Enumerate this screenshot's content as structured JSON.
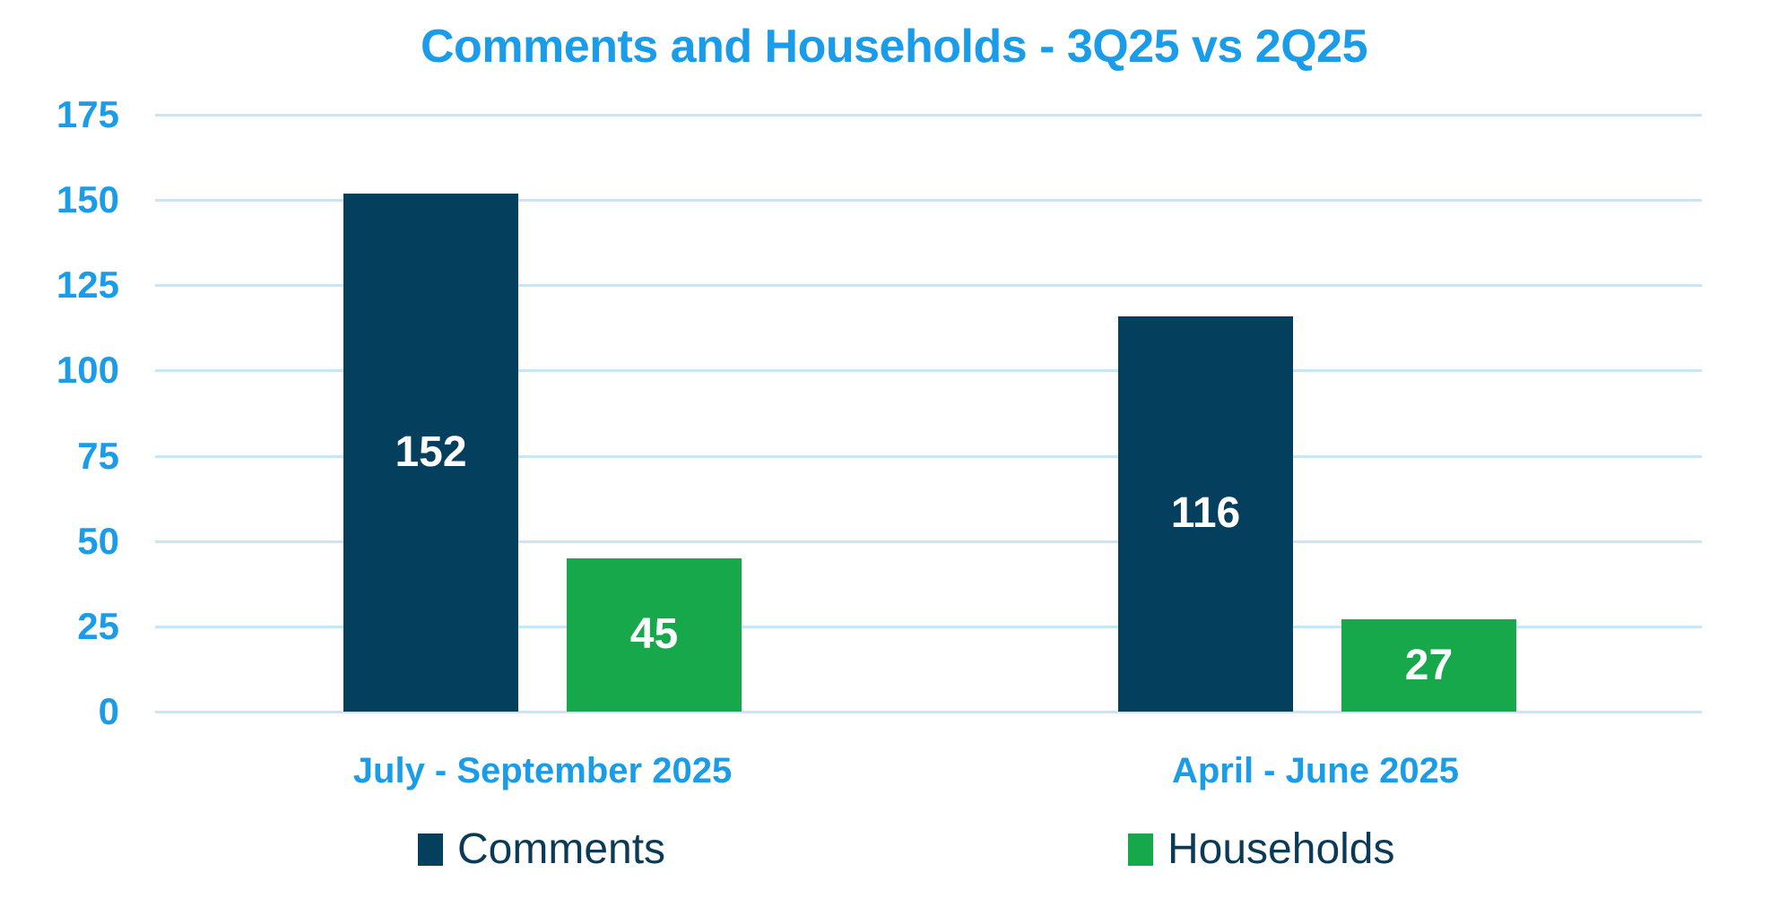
{
  "chart_data": {
    "type": "bar",
    "title": "Comments and Households - 3Q25 vs 2Q25",
    "categories": [
      "July - September 2025",
      "April - June 2025"
    ],
    "series": [
      {
        "name": "Comments",
        "color_key": "navy",
        "values": [
          152,
          116
        ]
      },
      {
        "name": "Households",
        "color_key": "green",
        "values": [
          45,
          27
        ]
      }
    ],
    "ylim": [
      0,
      175
    ],
    "yticks": [
      175,
      150,
      125,
      100,
      75,
      50,
      25,
      0
    ],
    "grid": true,
    "data_labels": "inside-center",
    "legend_position": "bottom"
  },
  "colors": {
    "navy": "#053F5E",
    "green": "#16A84B",
    "title_blue": "#1B9CE9",
    "axis_label_blue": "#1B9CE9",
    "gridline_blue": "#C7E7F9",
    "legend_text_navy": "#0B3A56",
    "bar_label_white": "#FFFFFF",
    "background": "#FFFFFF"
  }
}
